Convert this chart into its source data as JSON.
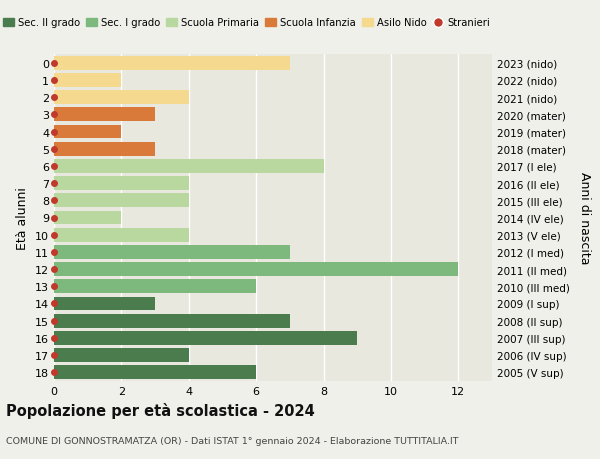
{
  "ages": [
    18,
    17,
    16,
    15,
    14,
    13,
    12,
    11,
    10,
    9,
    8,
    7,
    6,
    5,
    4,
    3,
    2,
    1,
    0
  ],
  "right_labels": [
    "2005 (V sup)",
    "2006 (IV sup)",
    "2007 (III sup)",
    "2008 (II sup)",
    "2009 (I sup)",
    "2010 (III med)",
    "2011 (II med)",
    "2012 (I med)",
    "2013 (V ele)",
    "2014 (IV ele)",
    "2015 (III ele)",
    "2016 (II ele)",
    "2017 (I ele)",
    "2018 (mater)",
    "2019 (mater)",
    "2020 (mater)",
    "2021 (nido)",
    "2022 (nido)",
    "2023 (nido)"
  ],
  "values": [
    6,
    4,
    9,
    7,
    3,
    6,
    12,
    7,
    4,
    2,
    4,
    4,
    8,
    3,
    2,
    3,
    4,
    2,
    7
  ],
  "colors": [
    "#4a7c4e",
    "#4a7c4e",
    "#4a7c4e",
    "#4a7c4e",
    "#4a7c4e",
    "#7db87d",
    "#7db87d",
    "#7db87d",
    "#b8d8a0",
    "#b8d8a0",
    "#b8d8a0",
    "#b8d8a0",
    "#b8d8a0",
    "#d97a3a",
    "#d97a3a",
    "#d97a3a",
    "#f5d98e",
    "#f5d98e",
    "#f5d98e"
  ],
  "stranieri_dot_color": "#c0392b",
  "legend_items": [
    {
      "label": "Sec. II grado",
      "color": "#4a7c4e"
    },
    {
      "label": "Sec. I grado",
      "color": "#7db87d"
    },
    {
      "label": "Scuola Primaria",
      "color": "#b8d8a0"
    },
    {
      "label": "Scuola Infanzia",
      "color": "#d97a3a"
    },
    {
      "label": "Asilo Nido",
      "color": "#f5d98e"
    },
    {
      "label": "Stranieri",
      "color": "#c0392b"
    }
  ],
  "ylabel": "Età alunni",
  "ylabel_right": "Anni di nascita",
  "title": "Popolazione per età scolastica - 2024",
  "subtitle": "COMUNE DI GONNOSTRAMATZA (OR) - Dati ISTAT 1° gennaio 2024 - Elaborazione TUTTITALIA.IT",
  "xlim": [
    0,
    13
  ],
  "xticks": [
    0,
    2,
    4,
    6,
    8,
    10,
    12
  ],
  "background_color": "#f0f0eb",
  "bar_background_color": "#e8e8de",
  "grid_color": "#ffffff"
}
